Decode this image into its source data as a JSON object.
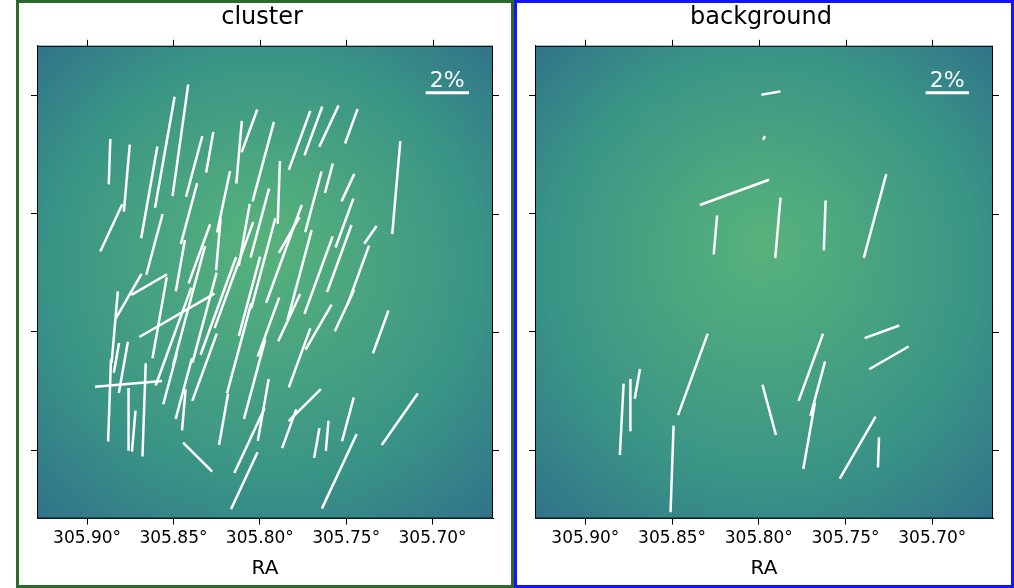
{
  "chart_data": [
    {
      "type": "vector",
      "title": "cluster",
      "x_label": "RA",
      "color": "#ffffff",
      "xlim": [
        305.929,
        305.665
      ],
      "ylim": [
        40.671,
        40.871
      ],
      "xticks": [
        {
          "value": 305.9,
          "label": "305.90°"
        },
        {
          "value": 305.85,
          "label": "305.85°"
        },
        {
          "value": 305.8,
          "label": "305.80°"
        },
        {
          "value": 305.75,
          "label": "305.75°"
        },
        {
          "value": 305.7,
          "label": "305.70°"
        }
      ],
      "yticks": [
        40.7,
        40.75,
        40.8,
        40.85
      ],
      "tick_labels": "x",
      "scale_bar": {
        "value": 2,
        "label": "2%"
      },
      "x": [
        305.887,
        305.877,
        305.886,
        305.864,
        305.861,
        305.855,
        305.846,
        305.838,
        305.829,
        305.821,
        305.812,
        305.806,
        305.798,
        305.789,
        305.777,
        305.769,
        305.76,
        305.747,
        305.76,
        305.749,
        305.721,
        305.736,
        305.743,
        305.754,
        305.766,
        305.777,
        305.786,
        305.798,
        305.806,
        305.815,
        305.824,
        305.832,
        305.841,
        305.85,
        305.858,
        305.864,
        305.876,
        305.884,
        305.887,
        305.879,
        305.876,
        305.867,
        305.876,
        305.852,
        305.844,
        305.832,
        305.848,
        305.812,
        305.803,
        305.795,
        305.783,
        305.777,
        305.766,
        305.751,
        305.73,
        305.774,
        305.798,
        305.806,
        305.821,
        305.844,
        305.836,
        305.809,
        305.783,
        305.767,
        305.761,
        305.754,
        305.749,
        305.719,
        305.8,
        305.809,
        305.835,
        305.846,
        305.841,
        305.769,
        305.751,
        305.783,
        305.873,
        305.883,
        305.824
      ],
      "values": [
        40.822,
        40.815,
        40.794,
        40.809,
        40.787,
        40.826,
        40.831,
        40.82,
        40.826,
        40.805,
        40.826,
        40.835,
        40.822,
        40.809,
        40.831,
        40.835,
        40.837,
        40.837,
        40.815,
        40.811,
        40.811,
        40.791,
        40.774,
        40.781,
        40.774,
        40.774,
        40.783,
        40.779,
        40.765,
        40.774,
        40.761,
        40.756,
        40.761,
        40.748,
        40.756,
        40.77,
        40.765,
        40.752,
        40.721,
        40.735,
        40.713,
        40.717,
        40.728,
        40.73,
        40.726,
        40.735,
        40.757,
        40.743,
        40.73,
        40.752,
        40.756,
        40.739,
        40.752,
        40.759,
        40.75,
        40.719,
        40.717,
        40.704,
        40.713,
        40.717,
        40.697,
        40.687,
        40.709,
        40.703,
        40.706,
        40.691,
        40.713,
        40.713,
        40.796,
        40.791,
        40.783,
        40.778,
        40.8,
        40.805,
        40.796,
        40.791,
        40.708,
        40.739,
        40.787
      ],
      "lengths": [
        2.1,
        3.1,
        2.4,
        4.3,
        2.9,
        5.2,
        5.2,
        2.9,
        1.9,
        2.9,
        2.9,
        2.1,
        3.8,
        2.9,
        2.9,
        2.4,
        2.1,
        1.7,
        1.4,
        1.4,
        4.3,
        1.0,
        2.9,
        3.3,
        3.8,
        4.3,
        4.8,
        4.3,
        3.8,
        5.2,
        4.8,
        4.3,
        5.7,
        4.8,
        3.8,
        1.9,
        2.4,
        3.3,
        3.8,
        2.4,
        2.9,
        4.3,
        3.1,
        2.4,
        2.9,
        3.3,
        4.0,
        4.3,
        3.8,
        2.9,
        2.4,
        2.9,
        2.4,
        2.1,
        2.1,
        2.1,
        2.9,
        3.3,
        2.4,
        1.9,
        1.9,
        2.9,
        1.9,
        1.4,
        1.4,
        3.8,
        2.1,
        2.9,
        3.3,
        2.9,
        2.9,
        2.4,
        2.9,
        2.9,
        2.4,
        1.9,
        1.9,
        1.4,
        2.4
      ],
      "angles": [
        178,
        175,
        155,
        170,
        165,
        170,
        172,
        165,
        170,
        168,
        175,
        160,
        165,
        178,
        160,
        160,
        155,
        160,
        165,
        155,
        175,
        145,
        160,
        160,
        160,
        165,
        160,
        165,
        165,
        160,
        160,
        165,
        165,
        160,
        170,
        120,
        150,
        175,
        178,
        170,
        180,
        178,
        95,
        165,
        165,
        160,
        120,
        165,
        165,
        160,
        155,
        160,
        150,
        155,
        160,
        135,
        170,
        155,
        170,
        175,
        45,
        155,
        160,
        170,
        175,
        155,
        165,
        145,
        165,
        170,
        160,
        170,
        165,
        165,
        160,
        150,
        175,
        170,
        175
      ]
    },
    {
      "type": "vector",
      "title": "background",
      "x_label": "RA",
      "color": "#ffffff",
      "xlim": [
        305.929,
        305.665
      ],
      "ylim": [
        40.671,
        40.871
      ],
      "xticks": [
        {
          "value": 305.9,
          "label": "305.90°"
        },
        {
          "value": 305.85,
          "label": "305.85°"
        },
        {
          "value": 305.8,
          "label": "305.80°"
        },
        {
          "value": 305.75,
          "label": "305.75°"
        },
        {
          "value": 305.7,
          "label": "305.70°"
        }
      ],
      "yticks": [
        40.7,
        40.75,
        40.8,
        40.85
      ],
      "tick_labels": "x",
      "scale_bar": {
        "value": 2,
        "label": "2%"
      },
      "x": [
        305.793,
        305.797,
        305.814,
        305.825,
        305.789,
        305.762,
        305.733,
        305.729,
        305.725,
        305.838,
        305.879,
        305.874,
        305.87,
        305.85,
        305.794,
        305.77,
        305.766,
        305.771,
        305.743,
        305.731
      ],
      "values": [
        40.851,
        40.832,
        40.809,
        40.791,
        40.794,
        40.795,
        40.799,
        40.75,
        40.739,
        40.732,
        40.713,
        40.719,
        40.728,
        40.692,
        40.717,
        40.735,
        40.726,
        40.706,
        40.701,
        40.699
      ],
      "lengths": [
        0.9,
        0.2,
        3.4,
        1.8,
        2.8,
        2.3,
        4.0,
        1.7,
        2.1,
        4.0,
        3.3,
        2.4,
        1.4,
        4.0,
        2.4,
        3.3,
        2.6,
        3.1,
        3.3,
        1.4
      ],
      "angles": [
        100,
        150,
        110,
        175,
        175,
        178,
        165,
        110,
        120,
        160,
        177,
        180,
        170,
        178,
        15,
        160,
        165,
        170,
        150,
        178
      ]
    }
  ]
}
